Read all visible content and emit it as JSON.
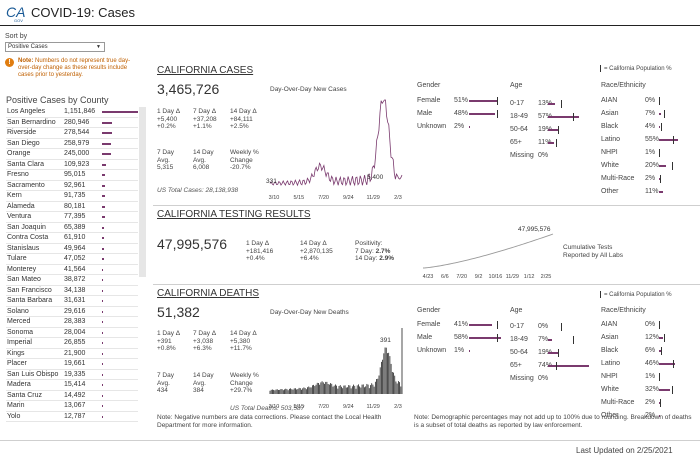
{
  "header": {
    "logo_text": "CA.GOV",
    "title": "COVID-19: Cases"
  },
  "sidebar": {
    "sort_label": "Sort by",
    "sort_value": "Positive Cases",
    "note_bold": "Note:",
    "note_text": "Numbers do not represent true day-over-day change as these results include cases prior to yesterday.",
    "county_title": "Positive Cases by County",
    "counties": [
      {
        "name": "Los Angeles",
        "value": "1,151,846",
        "n": 1151846
      },
      {
        "name": "San Bernardino",
        "value": "280,946",
        "n": 280946
      },
      {
        "name": "Riverside",
        "value": "278,544",
        "n": 278544
      },
      {
        "name": "San Diego",
        "value": "258,979",
        "n": 258979
      },
      {
        "name": "Orange",
        "value": "245,000",
        "n": 245000
      },
      {
        "name": "Santa Clara",
        "value": "109,923",
        "n": 109923
      },
      {
        "name": "Fresno",
        "value": "95,015",
        "n": 95015
      },
      {
        "name": "Sacramento",
        "value": "92,961",
        "n": 92961
      },
      {
        "name": "Kern",
        "value": "91,735",
        "n": 91735
      },
      {
        "name": "Alameda",
        "value": "80,181",
        "n": 80181
      },
      {
        "name": "Ventura",
        "value": "77,395",
        "n": 77395
      },
      {
        "name": "San Joaquin",
        "value": "65,389",
        "n": 65389
      },
      {
        "name": "Contra Costa",
        "value": "61,910",
        "n": 61910
      },
      {
        "name": "Stanislaus",
        "value": "49,964",
        "n": 49964
      },
      {
        "name": "Tulare",
        "value": "47,052",
        "n": 47052
      },
      {
        "name": "Monterey",
        "value": "41,564",
        "n": 41564
      },
      {
        "name": "San Mateo",
        "value": "38,872",
        "n": 38872
      },
      {
        "name": "San Francisco",
        "value": "34,138",
        "n": 34138
      },
      {
        "name": "Santa Barbara",
        "value": "31,631",
        "n": 31631
      },
      {
        "name": "Solano",
        "value": "29,616",
        "n": 29616
      },
      {
        "name": "Merced",
        "value": "28,383",
        "n": 28383
      },
      {
        "name": "Sonoma",
        "value": "28,004",
        "n": 28004
      },
      {
        "name": "Imperial",
        "value": "26,855",
        "n": 26855
      },
      {
        "name": "Kings",
        "value": "21,900",
        "n": 21900
      },
      {
        "name": "Placer",
        "value": "19,661",
        "n": 19661
      },
      {
        "name": "San Luis Obispo",
        "value": "19,335",
        "n": 19335
      },
      {
        "name": "Madera",
        "value": "15,414",
        "n": 15414
      },
      {
        "name": "Santa Cruz",
        "value": "14,492",
        "n": 14492
      },
      {
        "name": "Marin",
        "value": "13,067",
        "n": 13067
      },
      {
        "name": "Yolo",
        "value": "12,787",
        "n": 12787
      }
    ]
  },
  "ca_pop_legend": "= California Population %",
  "cases": {
    "title": "CALIFORNIA CASES",
    "total": "3,465,726",
    "d1_label": "1 Day Δ",
    "d1_val": "+5,400",
    "d1_pct": "+0.2%",
    "d7_label": "7 Day Δ",
    "d7_val": "+37,208",
    "d7_pct": "+1.1%",
    "d14_label": "14 Day Δ",
    "d14_val": "+84,111",
    "d14_pct": "+2.5%",
    "a7_label1": "7 Day",
    "a7_label2": "Avg.",
    "a7_val": "5,315",
    "a14_label1": "14 Day",
    "a14_label2": "Avg.",
    "a14_val": "6,008",
    "wk_label1": "Weekly %",
    "wk_label2": "Change",
    "wk_val": "-20.7%",
    "us_total": "US Total Cases: 28,138,938",
    "chart_title": "Day-Over-Day New Cases",
    "chart_start_label": "331",
    "chart_end_label": "5,400",
    "x_ticks": [
      "3/10",
      "5/15",
      "7/20",
      "9/24",
      "11/29",
      "2/3"
    ],
    "gender_title": "Gender",
    "age_title": "Age",
    "race_title": "Race/Ethnicity",
    "gender": [
      {
        "label": "Female",
        "pct": "51%",
        "v": 51,
        "pop": 50
      },
      {
        "label": "Male",
        "pct": "48%",
        "v": 48,
        "pop": 50
      },
      {
        "label": "Unknown",
        "pct": "2%",
        "v": 2,
        "pop": null
      }
    ],
    "age": [
      {
        "label": "0-17",
        "pct": "13%",
        "v": 13,
        "pop": 23
      },
      {
        "label": "18-49",
        "pct": "57%",
        "v": 57,
        "pop": 45
      },
      {
        "label": "50-64",
        "pct": "19%",
        "v": 19,
        "pop": 18
      },
      {
        "label": "65+",
        "pct": "11%",
        "v": 11,
        "pop": 14
      },
      {
        "label": "Missing",
        "pct": "0%",
        "v": 0,
        "pop": null
      }
    ],
    "race": [
      {
        "label": "AIAN",
        "pct": "0%",
        "v": 0,
        "pop": 1
      },
      {
        "label": "Asian",
        "pct": "7%",
        "v": 7,
        "pop": 15
      },
      {
        "label": "Black",
        "pct": "4%",
        "v": 4,
        "pop": 6
      },
      {
        "label": "Latino",
        "pct": "55%",
        "v": 55,
        "pop": 39
      },
      {
        "label": "NHPI",
        "pct": "1%",
        "v": 1,
        "pop": 1
      },
      {
        "label": "White",
        "pct": "20%",
        "v": 20,
        "pop": 37
      },
      {
        "label": "Multi-Race",
        "pct": "2%",
        "v": 2,
        "pop": 2
      },
      {
        "label": "Other",
        "pct": "11%",
        "v": 11,
        "pop": null
      }
    ]
  },
  "testing": {
    "title": "CALIFORNIA TESTING RESULTS",
    "total": "47,995,576",
    "d1_label": "1 Day Δ",
    "d1_val": "+181,416",
    "d1_pct": "+0.4%",
    "d14_label": "14 Day Δ",
    "d14_val": "+2,870,135",
    "d14_pct": "+6.4%",
    "pos_label": "Positivity:",
    "pos_7_label": "7 Day:",
    "pos_7": "2.7%",
    "pos_14_label": "14 Day:",
    "pos_14": "2.9%",
    "chart_end_label": "47,995,576",
    "x_ticks": [
      "4/23",
      "6/6",
      "7/20",
      "9/2",
      "10/16",
      "11/29",
      "1/12",
      "2/25"
    ],
    "cumulative_label1": "Cumulative Tests",
    "cumulative_label2": "Reported by All Labs"
  },
  "deaths": {
    "title": "CALIFORNIA DEATHS",
    "total": "51,382",
    "d1_label": "1 Day Δ",
    "d1_val": "+391",
    "d1_pct": "+0.8%",
    "d7_label": "7 Day Δ",
    "d7_val": "+3,038",
    "d7_pct": "+6.3%",
    "d14_label": "14 Day Δ",
    "d14_val": "+5,380",
    "d14_pct": "+11.7%",
    "a7_label1": "7 Day",
    "a7_label2": "Avg.",
    "a7_val": "434",
    "a14_label1": "14 Day",
    "a14_label2": "Avg.",
    "a14_val": "384",
    "wk_label1": "Weekly %",
    "wk_label2": "Change",
    "wk_val": "+29.7%",
    "us_total": "US Total Deaths: 503,587",
    "footnote": "Note: Negative numbers are data corrections. Please contact the Local Health Department for more information.",
    "chart_title": "Day-Over-Day New Deaths",
    "chart_end_label": "391",
    "x_ticks": [
      "3/10",
      "5/15",
      "7/20",
      "9/24",
      "11/29",
      "2/3"
    ],
    "gender_title": "Gender",
    "age_title": "Age",
    "race_title": "Race/Ethnicity",
    "gender": [
      {
        "label": "Female",
        "pct": "41%",
        "v": 41,
        "pop": 50
      },
      {
        "label": "Male",
        "pct": "58%",
        "v": 58,
        "pop": 50
      },
      {
        "label": "Unknown",
        "pct": "1%",
        "v": 1,
        "pop": null
      }
    ],
    "age": [
      {
        "label": "0-17",
        "pct": "0%",
        "v": 0,
        "pop": 23
      },
      {
        "label": "18-49",
        "pct": "7%",
        "v": 7,
        "pop": 45
      },
      {
        "label": "50-64",
        "pct": "19%",
        "v": 19,
        "pop": 18
      },
      {
        "label": "65+",
        "pct": "74%",
        "v": 74,
        "pop": 14
      },
      {
        "label": "Missing",
        "pct": "0%",
        "v": 0,
        "pop": null
      }
    ],
    "race": [
      {
        "label": "AIAN",
        "pct": "0%",
        "v": 0,
        "pop": 1
      },
      {
        "label": "Asian",
        "pct": "12%",
        "v": 12,
        "pop": 15
      },
      {
        "label": "Black",
        "pct": "6%",
        "v": 6,
        "pop": 6
      },
      {
        "label": "Latino",
        "pct": "46%",
        "v": 46,
        "pop": 39
      },
      {
        "label": "NHPI",
        "pct": "1%",
        "v": 1,
        "pop": 1
      },
      {
        "label": "White",
        "pct": "32%",
        "v": 32,
        "pop": 37
      },
      {
        "label": "Multi-Race",
        "pct": "2%",
        "v": 2,
        "pop": 2
      },
      {
        "label": "Other",
        "pct": "2%",
        "v": 2,
        "pop": null
      }
    ],
    "demo_note": "Note: Demographic percentages may not add up to 100% due to rounding. Breakdown of deaths is a subset of total deaths as reported by law enforcement."
  },
  "footer": {
    "last_updated": "Last Updated on 2/25/2021"
  },
  "colors": {
    "bar": "#7a3a6e",
    "accent_orange": "#e07d10",
    "line": "#333333"
  }
}
